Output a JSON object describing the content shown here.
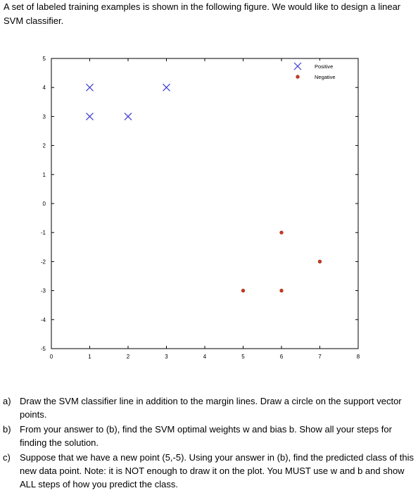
{
  "intro": "A set of labeled training examples is shown in the following figure. We would like to design a linear SVM classifier.",
  "chart_data": {
    "type": "scatter",
    "title": "",
    "xlabel": "",
    "ylabel": "",
    "xlim": [
      0,
      8
    ],
    "ylim": [
      -5,
      5
    ],
    "xticks": [
      "0",
      "1",
      "2",
      "3",
      "4",
      "5",
      "6",
      "7",
      "8"
    ],
    "yticks": [
      "-5",
      "-4",
      "-3",
      "-2",
      "-1",
      "0",
      "1",
      "2",
      "3",
      "4",
      "5"
    ],
    "grid": false,
    "legend_position": "top-right",
    "series": [
      {
        "name": "Positive",
        "marker": "x",
        "color": "#3b3bd6",
        "points": [
          [
            1,
            4
          ],
          [
            3,
            4
          ],
          [
            1,
            3
          ],
          [
            2,
            3
          ]
        ]
      },
      {
        "name": "Negative",
        "marker": "dot",
        "color": "#d23a1f",
        "points": [
          [
            6,
            -1
          ],
          [
            7,
            -2
          ],
          [
            5,
            -3
          ],
          [
            6,
            -3
          ]
        ]
      }
    ]
  },
  "questions": [
    {
      "label": "a)",
      "text": "Draw the SVM classifier line in addition to the margin lines. Draw a circle on the support vector points."
    },
    {
      "label": "b)",
      "text": "From your answer to (b), find the SVM optimal weights w and bias b. Show all your steps for finding the solution."
    },
    {
      "label": "c)",
      "text": "Suppose that we have a new point (5,-5). Using your answer in (b), find the predicted class of this new data point. Note: it is NOT enough to draw it on the plot. You MUST use w and b and show ALL steps of how you predict the class."
    }
  ]
}
